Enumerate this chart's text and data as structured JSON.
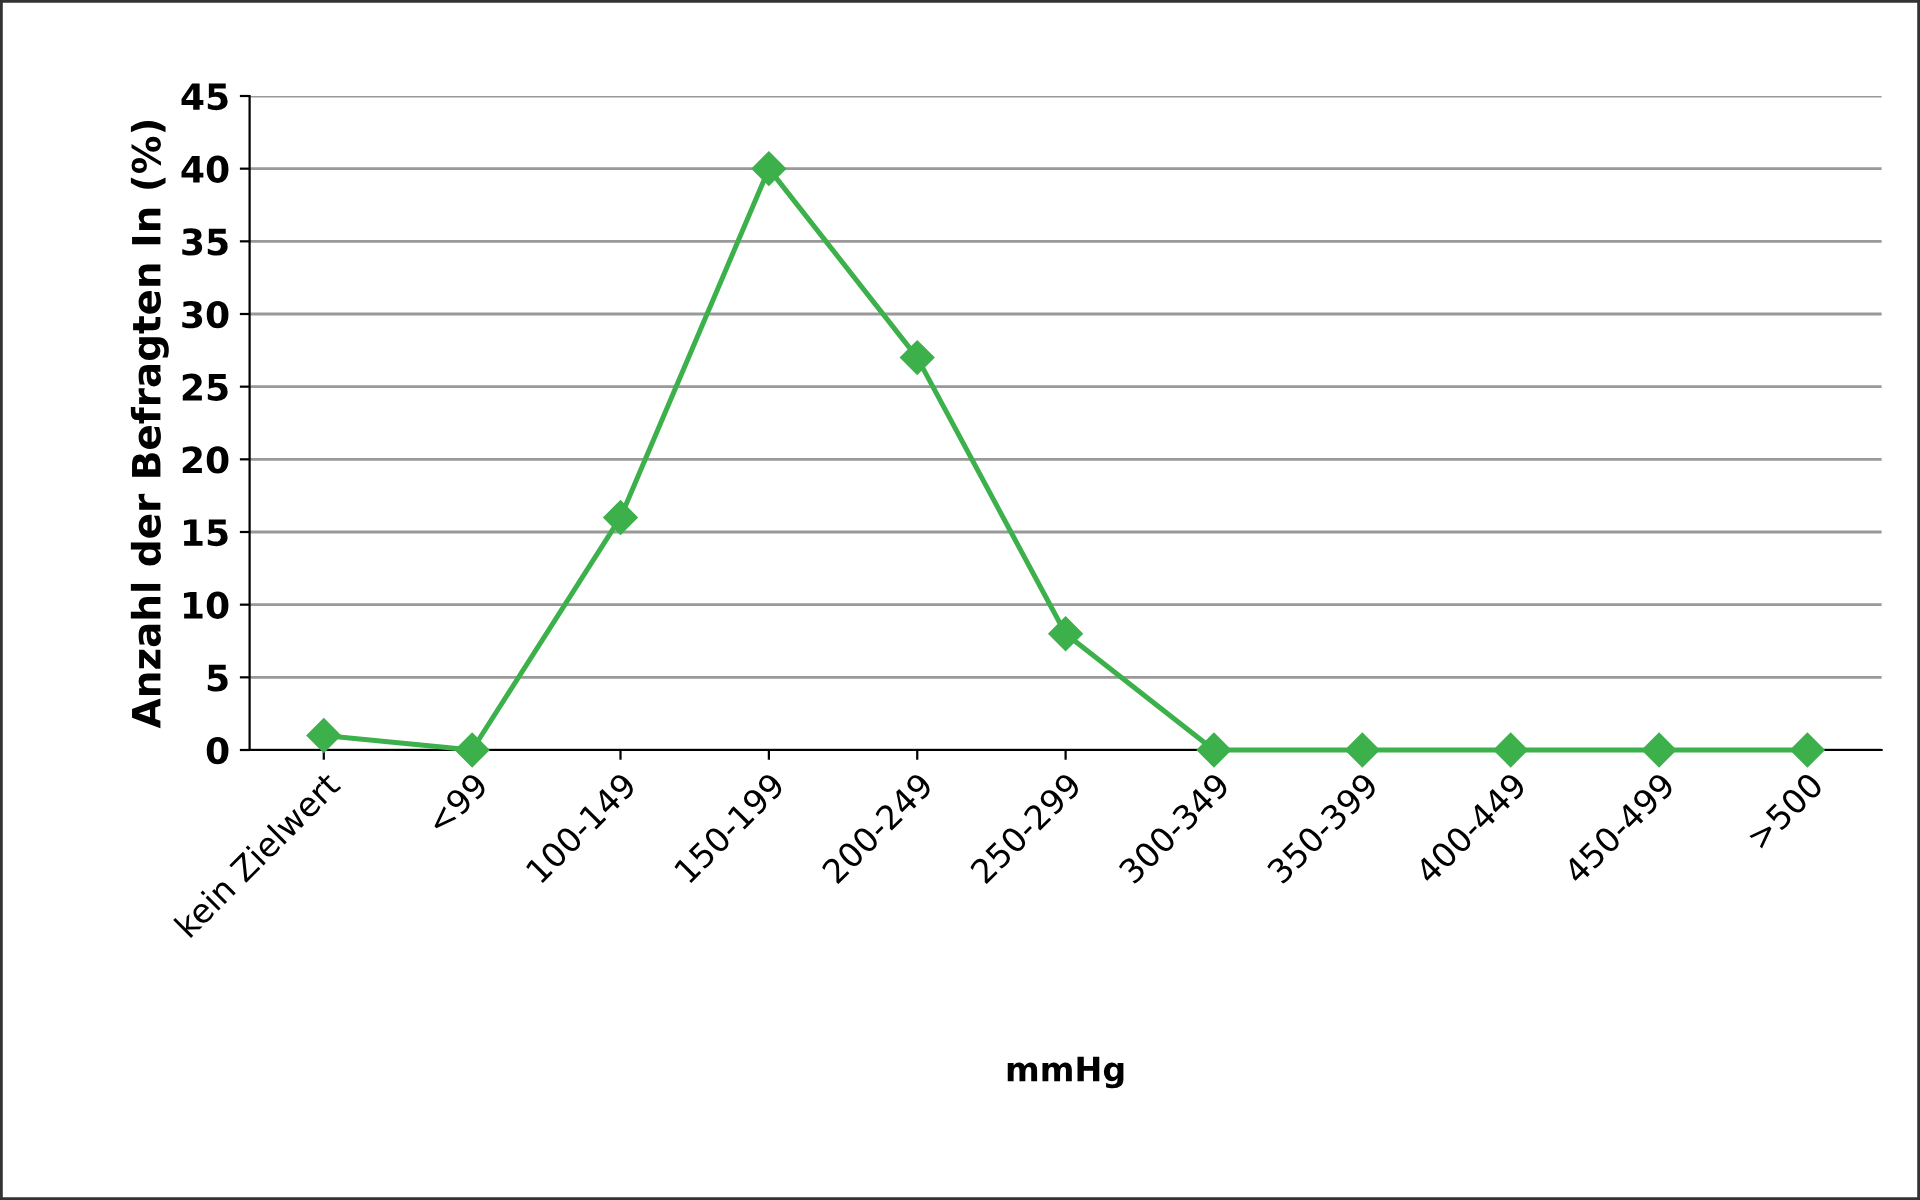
{
  "chart_data": {
    "type": "line",
    "ylabel": "Anzahl der Befragten In (%)",
    "xlabel": "mmHg",
    "categories": [
      "kein Zielwert",
      "<99",
      "100-149",
      "150-199",
      "200-249",
      "250-299",
      "300-349",
      "350-399",
      "400-449",
      "450-499",
      ">500"
    ],
    "series": [
      {
        "color": "#3cb04a",
        "values": [
          1,
          0,
          16,
          40,
          27,
          8,
          0,
          0,
          0,
          0,
          0
        ]
      }
    ],
    "ylim": [
      0,
      45
    ],
    "yticks": [
      0,
      5,
      10,
      15,
      20,
      25,
      30,
      35,
      40,
      45
    ],
    "grid": "y",
    "marker": "diamond",
    "line_style": "solid",
    "legend": false
  }
}
